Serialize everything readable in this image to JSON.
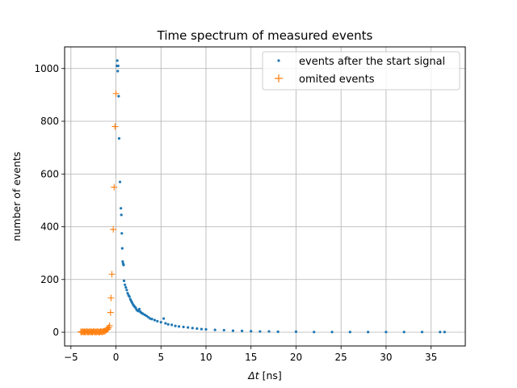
{
  "chart_data": {
    "type": "scatter",
    "title": "Time spectrum of measured events",
    "xlabel_italic": "Δt",
    "xlabel_rest": " [ns]",
    "ylabel": "number of events",
    "xlim": [
      -5.7,
      38.8
    ],
    "ylim": [
      -52,
      1082
    ],
    "xticks": [
      -5,
      0,
      5,
      10,
      15,
      20,
      25,
      30,
      35
    ],
    "yticks": [
      0,
      200,
      400,
      600,
      800,
      1000
    ],
    "grid": true,
    "legend_position": "top-right",
    "series": [
      {
        "name": "events after the start signal",
        "marker": "dot",
        "color": "#1f77b4",
        "points": [
          [
            0.1,
            1010
          ],
          [
            0.15,
            1030
          ],
          [
            0.2,
            990
          ],
          [
            0.25,
            1010
          ],
          [
            0.3,
            895
          ],
          [
            0.35,
            735
          ],
          [
            0.45,
            570
          ],
          [
            0.55,
            470
          ],
          [
            0.6,
            445
          ],
          [
            0.65,
            375
          ],
          [
            0.7,
            318
          ],
          [
            0.75,
            268
          ],
          [
            0.8,
            260
          ],
          [
            0.85,
            255
          ],
          [
            0.9,
            195
          ],
          [
            1.0,
            180
          ],
          [
            1.1,
            170
          ],
          [
            1.2,
            160
          ],
          [
            1.3,
            148
          ],
          [
            1.4,
            140
          ],
          [
            1.5,
            135
          ],
          [
            1.6,
            125
          ],
          [
            1.7,
            118
          ],
          [
            1.8,
            112
          ],
          [
            1.9,
            105
          ],
          [
            2.0,
            100
          ],
          [
            2.1,
            96
          ],
          [
            2.2,
            92
          ],
          [
            2.3,
            85
          ],
          [
            2.4,
            82
          ],
          [
            2.5,
            80
          ],
          [
            2.6,
            88
          ],
          [
            2.7,
            78
          ],
          [
            2.8,
            74
          ],
          [
            2.9,
            72
          ],
          [
            3.0,
            70
          ],
          [
            3.2,
            66
          ],
          [
            3.4,
            62
          ],
          [
            3.6,
            57
          ],
          [
            3.8,
            52
          ],
          [
            4.0,
            50
          ],
          [
            4.3,
            46
          ],
          [
            4.6,
            42
          ],
          [
            5.0,
            38
          ],
          [
            5.3,
            52
          ],
          [
            5.5,
            34
          ],
          [
            5.8,
            30
          ],
          [
            6.2,
            28
          ],
          [
            6.6,
            24
          ],
          [
            7.0,
            22
          ],
          [
            7.5,
            20
          ],
          [
            8.0,
            18
          ],
          [
            8.5,
            16
          ],
          [
            9.0,
            14
          ],
          [
            9.5,
            12
          ],
          [
            10.0,
            11
          ],
          [
            11.0,
            9
          ],
          [
            12.0,
            8
          ],
          [
            13.0,
            6
          ],
          [
            14.0,
            5
          ],
          [
            15.0,
            4
          ],
          [
            16.0,
            3
          ],
          [
            17.0,
            3
          ],
          [
            18.0,
            2
          ],
          [
            20.0,
            2
          ],
          [
            22.0,
            1
          ],
          [
            24.0,
            1
          ],
          [
            26.0,
            1
          ],
          [
            28.0,
            1
          ],
          [
            30.0,
            1
          ],
          [
            32.0,
            1
          ],
          [
            34.0,
            1
          ],
          [
            36.0,
            1
          ],
          [
            36.5,
            1
          ]
        ]
      },
      {
        "name": "omited events",
        "marker": "plus",
        "color": "#ff7f0e",
        "points": [
          [
            -3.9,
            2
          ],
          [
            -3.8,
            0
          ],
          [
            -3.7,
            3
          ],
          [
            -3.6,
            1
          ],
          [
            -3.5,
            2
          ],
          [
            -3.4,
            0
          ],
          [
            -3.3,
            4
          ],
          [
            -3.2,
            1
          ],
          [
            -3.1,
            2
          ],
          [
            -3.0,
            0
          ],
          [
            -2.9,
            3
          ],
          [
            -2.8,
            1
          ],
          [
            -2.7,
            2
          ],
          [
            -2.6,
            0
          ],
          [
            -2.5,
            4
          ],
          [
            -2.4,
            1
          ],
          [
            -2.3,
            2
          ],
          [
            -2.2,
            0
          ],
          [
            -2.1,
            3
          ],
          [
            -2.0,
            1
          ],
          [
            -1.9,
            2
          ],
          [
            -1.8,
            0
          ],
          [
            -1.7,
            3
          ],
          [
            -1.6,
            2
          ],
          [
            -1.5,
            1
          ],
          [
            -1.4,
            3
          ],
          [
            -1.3,
            5
          ],
          [
            -1.2,
            4
          ],
          [
            -1.1,
            8
          ],
          [
            -1.0,
            10
          ],
          [
            -0.9,
            12
          ],
          [
            -0.8,
            18
          ],
          [
            -0.7,
            25
          ],
          [
            -0.6,
            75
          ],
          [
            -0.55,
            130
          ],
          [
            -0.45,
            220
          ],
          [
            -0.3,
            390
          ],
          [
            -0.2,
            550
          ],
          [
            -0.1,
            780
          ],
          [
            0.0,
            905
          ]
        ]
      }
    ]
  }
}
